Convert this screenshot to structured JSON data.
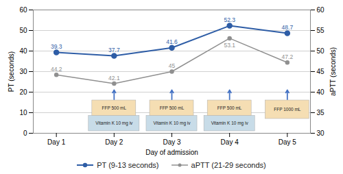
{
  "chart_data": {
    "type": "line",
    "xlabel": "Day of admission",
    "ylabel": "PT (seconds)",
    "y2label": "aPTT (seconds)",
    "categories": [
      "Day 1",
      "Day 2",
      "Day 3",
      "Day 4",
      "Day 5"
    ],
    "series": [
      {
        "name": "PT (9-13 seconds)",
        "color": "#2E5DA6",
        "marker": "circle",
        "values": [
          39.3,
          37.7,
          41.6,
          52.3,
          48.7
        ]
      },
      {
        "name": "aPTT (21-29 seconds)",
        "color": "#909090",
        "marker": "circle",
        "axis": "y2",
        "values": [
          44.2,
          42.1,
          45,
          53.1,
          47.2
        ]
      }
    ],
    "ylim": [
      0,
      60
    ],
    "yticks": [
      0,
      10,
      20,
      30,
      40,
      50,
      60
    ],
    "y2lim": [
      30,
      60
    ],
    "y2ticks": [
      30,
      35,
      40,
      45,
      50,
      55,
      60
    ],
    "grid": true,
    "legend": "bottom",
    "data_labels": true,
    "annotations": [
      {
        "x": "Day 2",
        "text": "Vitamin K 10 mg iv",
        "color": "#C8DCE8"
      },
      {
        "x": "Day 2",
        "text": "FFP 500 mL",
        "color": "#F5DEB3"
      },
      {
        "x": "Day 3",
        "text": "Vitamin K 10 mg iv",
        "color": "#C8DCE8"
      },
      {
        "x": "Day 3",
        "text": "FFP 500 mL",
        "color": "#F5DEB3"
      },
      {
        "x": "Day 4",
        "text": "Vitamin K 10 mg iv",
        "color": "#C8DCE8"
      },
      {
        "x": "Day 4",
        "text": "FFP 500 mL",
        "color": "#F5DEB3"
      },
      {
        "x": "Day 5",
        "text": "FFP 1000 mL",
        "color": "#F5DEB3"
      }
    ]
  }
}
